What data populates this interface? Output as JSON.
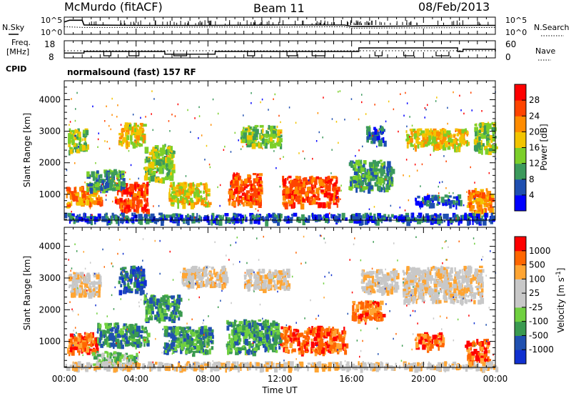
{
  "header": {
    "site": "McMurdo (fitACF)",
    "beam": "Beam 11",
    "date": "08/Feb/2013"
  },
  "left_labels": {
    "nsky": "N.Sky",
    "freq_line1": "Freq.",
    "freq_line2": "[MHz]",
    "cpid": "CPID"
  },
  "right_labels": {
    "nsearch": "N.Search",
    "nave": "Nave"
  },
  "axis_labels": {
    "slant_range": "Slant Range [km]",
    "time": "Time UT",
    "power": "Power [dB]",
    "velocity": "Velocity [m s",
    "velocity_exp": "-1",
    "velocity_close": "]"
  },
  "colors": {
    "background": "#ffffff",
    "axis": "#000000",
    "power_scale": [
      "#0000ff",
      "#1f4fb0",
      "#3c9a5c",
      "#7ccf2a",
      "#f2c400",
      "#ff8c00",
      "#ff4400",
      "#ff0000"
    ],
    "velocity_scale": [
      "#ff0000",
      "#ff6600",
      "#ffa533",
      "#c8c8c8",
      "#c8c8c8",
      "#70d040",
      "#3a9a50",
      "#2050b0",
      "#1030d0"
    ]
  },
  "chart_data": [
    {
      "type": "line",
      "name": "sky-noise-panel",
      "series": [
        {
          "name": "N.Sky",
          "x_hours": [
            0,
            0.3,
            1.0,
            1.1,
            4,
            8,
            12,
            15.6,
            16,
            19,
            20,
            23,
            24
          ],
          "values": [
            3.6,
            4.1,
            4.1,
            2.7,
            2.6,
            2.6,
            2.7,
            2.7,
            2.3,
            2.4,
            2.5,
            2.6,
            2.6
          ]
        },
        {
          "name": "N.Search",
          "x_hours": [
            0,
            1.1,
            4,
            8,
            12,
            15.6,
            16,
            20,
            24
          ],
          "values": [
            2.2,
            2.0,
            2.0,
            2.1,
            2.1,
            2.2,
            1.8,
            1.9,
            2.0
          ]
        }
      ],
      "tick_labels_left": [
        "10^5",
        "10^0"
      ],
      "tick_labels_right": [
        "10^5",
        "10^0"
      ]
    },
    {
      "type": "line",
      "name": "frequency-nave-panel",
      "series": [
        {
          "name": "Freq.",
          "x_hours": [
            0,
            1,
            1.1,
            5.4,
            5.6,
            8.2,
            8.4,
            16.1,
            16.4,
            21.9,
            22.2,
            24
          ],
          "values": [
            10.4,
            10.4,
            11.5,
            11.5,
            9.6,
            9.6,
            11.5,
            11.5,
            14,
            11.5,
            13,
            11.5
          ]
        },
        {
          "name": "Nave",
          "x_hours": [
            0,
            24
          ],
          "values": [
            20,
            20
          ]
        }
      ],
      "left_ticks": [
        "18",
        "8"
      ],
      "right_ticks": [
        "60",
        "0"
      ],
      "cpid_text": "normalsound (fast) 157 RF"
    },
    {
      "type": "heatmap",
      "name": "power-panel",
      "x_label": "",
      "y_label": "Slant Range [km]",
      "x_hours_range": [
        0,
        24
      ],
      "y_range_km": [
        180,
        4600
      ],
      "y_ticks": [
        1000,
        2000,
        3000,
        4000
      ],
      "colorbar_label": "Power [dB]",
      "colorbar_ticks": [
        4,
        8,
        12,
        16,
        20,
        24,
        28
      ],
      "patches": [
        {
          "x": [
            0.1,
            2.0
          ],
          "y": [
            700,
            1300
          ],
          "level": 5
        },
        {
          "x": [
            2.8,
            4.6
          ],
          "y": [
            500,
            1400
          ],
          "level": 6
        },
        {
          "x": [
            3.0,
            4.4
          ],
          "y": [
            2600,
            3300
          ],
          "level": 4
        },
        {
          "x": [
            0.2,
            1.2
          ],
          "y": [
            2400,
            3100
          ],
          "level": 3
        },
        {
          "x": [
            1.2,
            3.3
          ],
          "y": [
            1200,
            1800
          ],
          "level": 2
        },
        {
          "x": [
            4.4,
            6.0
          ],
          "y": [
            1500,
            2600
          ],
          "level": 3
        },
        {
          "x": [
            5.8,
            8.0
          ],
          "y": [
            700,
            1400
          ],
          "level": 4
        },
        {
          "x": [
            9.1,
            10.9
          ],
          "y": [
            700,
            1700
          ],
          "level": 6
        },
        {
          "x": [
            9.8,
            12.0
          ],
          "y": [
            2600,
            3200
          ],
          "level": 3
        },
        {
          "x": [
            12.1,
            15.2
          ],
          "y": [
            700,
            1600
          ],
          "level": 6
        },
        {
          "x": [
            15.8,
            18.2
          ],
          "y": [
            1200,
            2100
          ],
          "level": 2
        },
        {
          "x": [
            16.8,
            17.8
          ],
          "y": [
            2700,
            3200
          ],
          "level": 1
        },
        {
          "x": [
            19.0,
            22.4
          ],
          "y": [
            2500,
            3100
          ],
          "level": 4
        },
        {
          "x": [
            19.5,
            22.0
          ],
          "y": [
            700,
            1000
          ],
          "level": 1
        },
        {
          "x": [
            22.4,
            23.8
          ],
          "y": [
            400,
            1200
          ],
          "level": 5
        },
        {
          "x": [
            22.8,
            24.0
          ],
          "y": [
            2400,
            3300
          ],
          "level": 3
        },
        {
          "x": [
            0.0,
            24.0
          ],
          "y": [
            180,
            420
          ],
          "level": 1
        }
      ]
    },
    {
      "type": "heatmap",
      "name": "velocity-panel",
      "x_label": "Time UT",
      "y_label": "Slant Range [km]",
      "x_hours_range": [
        0,
        24
      ],
      "x_ticks": [
        "00:00",
        "04:00",
        "08:00",
        "12:00",
        "16:00",
        "20:00",
        "00:00"
      ],
      "y_range_km": [
        180,
        4600
      ],
      "y_ticks": [
        1000,
        2000,
        3000,
        4000
      ],
      "colorbar_label": "Velocity [m s-1]",
      "colorbar_ticks": [
        1000,
        500,
        100,
        25,
        -25,
        -100,
        -500,
        -1000
      ],
      "patches": [
        {
          "x": [
            0.1,
            1.8
          ],
          "y": [
            700,
            1300
          ],
          "level": 1
        },
        {
          "x": [
            1.8,
            4.6
          ],
          "y": [
            900,
            1600
          ],
          "level": 6
        },
        {
          "x": [
            1.5,
            4.0
          ],
          "y": [
            300,
            700
          ],
          "level": 5
        },
        {
          "x": [
            0.2,
            2.0
          ],
          "y": [
            2500,
            3200
          ],
          "level": 3
        },
        {
          "x": [
            3.0,
            4.4
          ],
          "y": [
            2600,
            3400
          ],
          "level": 7
        },
        {
          "x": [
            4.4,
            6.4
          ],
          "y": [
            1700,
            2500
          ],
          "level": 6
        },
        {
          "x": [
            5.5,
            8.2
          ],
          "y": [
            700,
            1500
          ],
          "level": 6
        },
        {
          "x": [
            6.5,
            9.0
          ],
          "y": [
            2800,
            3400
          ],
          "level": 3
        },
        {
          "x": [
            9.0,
            12.0
          ],
          "y": [
            700,
            1700
          ],
          "level": 6
        },
        {
          "x": [
            10.0,
            12.5
          ],
          "y": [
            2700,
            3300
          ],
          "level": 3
        },
        {
          "x": [
            12.0,
            15.6
          ],
          "y": [
            700,
            1500
          ],
          "level": 1
        },
        {
          "x": [
            16.0,
            17.7
          ],
          "y": [
            1700,
            2300
          ],
          "level": 1
        },
        {
          "x": [
            16.5,
            18.5
          ],
          "y": [
            2600,
            3300
          ],
          "level": 3
        },
        {
          "x": [
            18.8,
            23.2
          ],
          "y": [
            2300,
            3400
          ],
          "level": 3
        },
        {
          "x": [
            19.5,
            21.0
          ],
          "y": [
            800,
            1300
          ],
          "level": 1
        },
        {
          "x": [
            22.3,
            23.6
          ],
          "y": [
            400,
            1100
          ],
          "level": 1
        },
        {
          "x": [
            0.0,
            24.0
          ],
          "y": [
            180,
            380
          ],
          "level": 3
        }
      ]
    }
  ]
}
